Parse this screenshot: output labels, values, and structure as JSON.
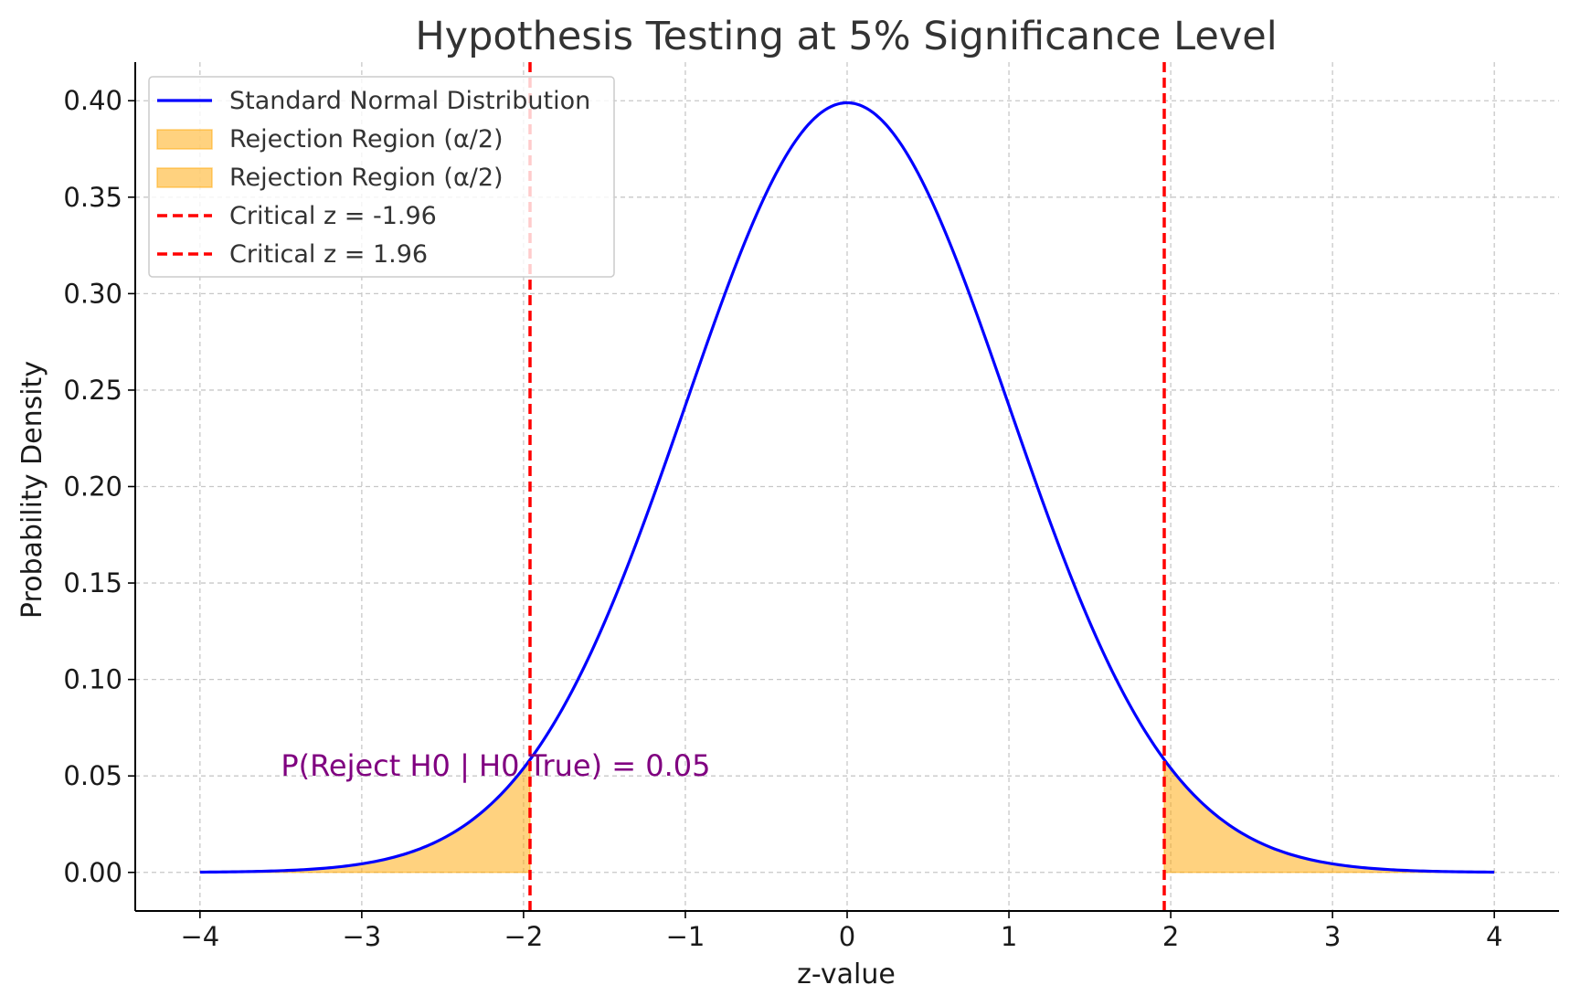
{
  "chart_data": {
    "type": "area",
    "title": "Hypothesis Testing at 5% Significance Level",
    "xlabel": "z-value",
    "ylabel": "Probability Density",
    "xlim": [
      -4.4,
      4.4
    ],
    "ylim": [
      -0.02,
      0.42
    ],
    "x_ticks": [
      -4,
      -3,
      -2,
      -1,
      0,
      1,
      2,
      3,
      4
    ],
    "x_tick_labels": [
      "−4",
      "−3",
      "−2",
      "−1",
      "0",
      "1",
      "2",
      "3",
      "4"
    ],
    "y_ticks": [
      0.0,
      0.05,
      0.1,
      0.15,
      0.2,
      0.25,
      0.3,
      0.35,
      0.4
    ],
    "y_tick_labels": [
      "0.00",
      "0.05",
      "0.10",
      "0.15",
      "0.20",
      "0.25",
      "0.30",
      "0.35",
      "0.40"
    ],
    "grid": true,
    "legend_position": "top-left",
    "series": [
      {
        "name": "Standard Normal Distribution",
        "kind": "line",
        "color": "#0000ff",
        "x": [
          -4.0,
          -3.5,
          -3.0,
          -2.5,
          -2.0,
          -1.5,
          -1.0,
          -0.5,
          0.0,
          0.5,
          1.0,
          1.5,
          2.0,
          2.5,
          3.0,
          3.5,
          4.0
        ],
        "y": [
          0.0001,
          0.0009,
          0.0044,
          0.0175,
          0.054,
          0.1295,
          0.242,
          0.3521,
          0.3989,
          0.3521,
          0.242,
          0.1295,
          0.054,
          0.0175,
          0.0044,
          0.0009,
          0.0001
        ]
      },
      {
        "name": "Rejection Region (α/2)",
        "kind": "area",
        "color": "#ffa500",
        "x_range": [
          -4.0,
          -1.96
        ]
      },
      {
        "name": "Rejection Region (α/2)",
        "kind": "area",
        "color": "#ffa500",
        "x_range": [
          1.96,
          4.0
        ]
      },
      {
        "name": "Critical z = -1.96",
        "kind": "vline",
        "color": "#ff0000",
        "x": -1.96
      },
      {
        "name": "Critical z = 1.96",
        "kind": "vline",
        "color": "#ff0000",
        "x": 1.96
      }
    ],
    "annotations": [
      {
        "text": "P(Reject H0 | H0 True) = 0.05",
        "x": -3.5,
        "y": 0.05,
        "color": "#800080"
      }
    ]
  }
}
